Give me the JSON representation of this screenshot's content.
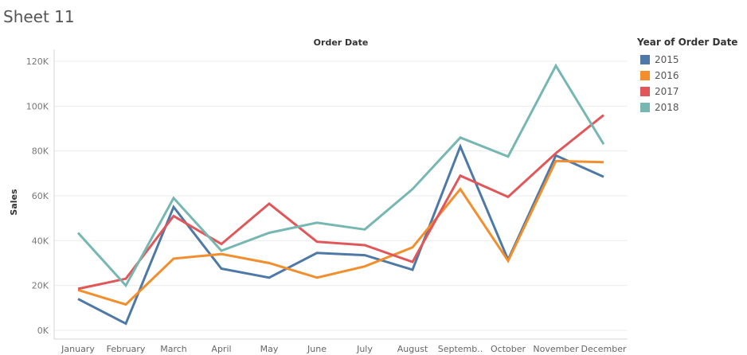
{
  "sheet_title": "Sheet 11",
  "legend_title": "Year of Order Date",
  "chart_data": {
    "type": "line",
    "title": "Order Date",
    "xlabel": "Order Date",
    "ylabel": "Sales",
    "categories": [
      "January",
      "February",
      "March",
      "April",
      "May",
      "June",
      "July",
      "August",
      "Septemb..",
      "October",
      "November",
      "December"
    ],
    "ylim": [
      0,
      125000
    ],
    "yticks": [
      0,
      20000,
      40000,
      60000,
      80000,
      100000,
      120000
    ],
    "ytick_labels": [
      "0K",
      "20K",
      "40K",
      "60K",
      "80K",
      "100K",
      "120K"
    ],
    "series": [
      {
        "name": "2015",
        "color": "#4e79a7",
        "values": [
          14000,
          3000,
          55000,
          27500,
          23500,
          34500,
          33500,
          27000,
          82000,
          31500,
          78000,
          68500
        ]
      },
      {
        "name": "2016",
        "color": "#f28e2b",
        "values": [
          18000,
          11500,
          32000,
          34000,
          30000,
          23500,
          28500,
          37000,
          63000,
          31000,
          75500,
          75000
        ]
      },
      {
        "name": "2017",
        "color": "#e15759",
        "values": [
          18500,
          23000,
          51000,
          38500,
          56500,
          39500,
          38000,
          30500,
          69000,
          59500,
          79000,
          96000
        ]
      },
      {
        "name": "2018",
        "color": "#76b7b2",
        "values": [
          43500,
          20000,
          59000,
          35500,
          43500,
          48000,
          45000,
          63000,
          86000,
          77500,
          118000,
          83000
        ]
      }
    ]
  }
}
